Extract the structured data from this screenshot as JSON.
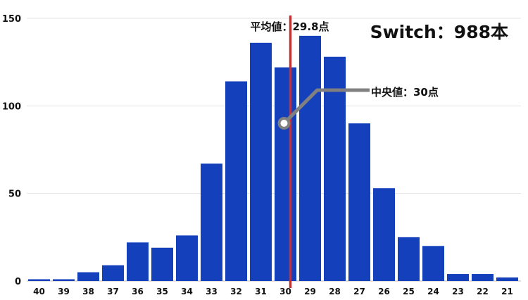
{
  "chart_data": {
    "type": "bar",
    "title": "Switch：988本",
    "xlabel": "",
    "ylabel": "",
    "ylim": [
      0,
      150
    ],
    "yticks": [
      0,
      50,
      100,
      150
    ],
    "grid": true,
    "categories": [
      "40",
      "39",
      "38",
      "37",
      "36",
      "35",
      "34",
      "33",
      "32",
      "31",
      "30",
      "29",
      "28",
      "27",
      "26",
      "25",
      "24",
      "23",
      "22",
      "21"
    ],
    "values": [
      1,
      1,
      5,
      9,
      22,
      19,
      26,
      67,
      114,
      136,
      122,
      140,
      128,
      90,
      53,
      25,
      20,
      4,
      4,
      2
    ],
    "bar_color": "#1440bc",
    "annotations": {
      "mean": {
        "label": "平均値：29.8点",
        "value": 29.8,
        "color": "#d42a2a"
      },
      "median": {
        "label": "中央値：30点",
        "value": 30,
        "color": "#808080"
      }
    }
  }
}
